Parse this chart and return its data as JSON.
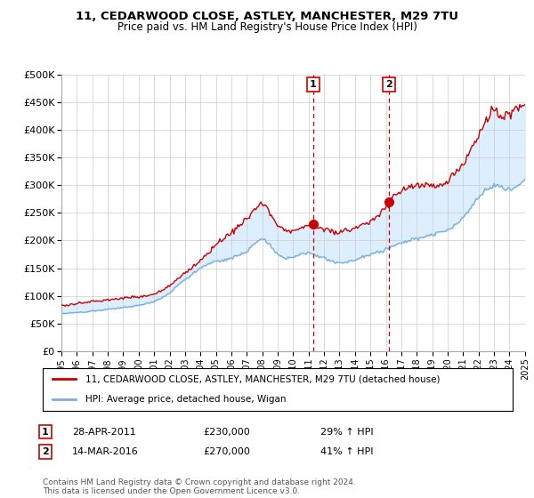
{
  "title": "11, CEDARWOOD CLOSE, ASTLEY, MANCHESTER, M29 7TU",
  "subtitle": "Price paid vs. HM Land Registry's House Price Index (HPI)",
  "legend_line1": "11, CEDARWOOD CLOSE, ASTLEY, MANCHESTER, M29 7TU (detached house)",
  "legend_line2": "HPI: Average price, detached house, Wigan",
  "footer": "Contains HM Land Registry data © Crown copyright and database right 2024.\nThis data is licensed under the Open Government Licence v3.0.",
  "annotation1": {
    "num": "1",
    "date": "28-APR-2011",
    "price": "£230,000",
    "pct": "29% ↑ HPI"
  },
  "annotation2": {
    "num": "2",
    "date": "14-MAR-2016",
    "price": "£270,000",
    "pct": "41% ↑ HPI"
  },
  "red_color": "#cc0000",
  "blue_color": "#7aafdc",
  "shading_color": "#ddeeff",
  "background_color": "#ffffff",
  "grid_color": "#cccccc",
  "ylim": [
    0,
    500000
  ],
  "yticks": [
    0,
    50000,
    100000,
    150000,
    200000,
    250000,
    300000,
    350000,
    400000,
    450000,
    500000
  ],
  "sale1_x": 2011.3,
  "sale1_y": 230000,
  "sale2_x": 2016.2,
  "sale2_y": 270000,
  "xmin": 1995,
  "xmax": 2025
}
